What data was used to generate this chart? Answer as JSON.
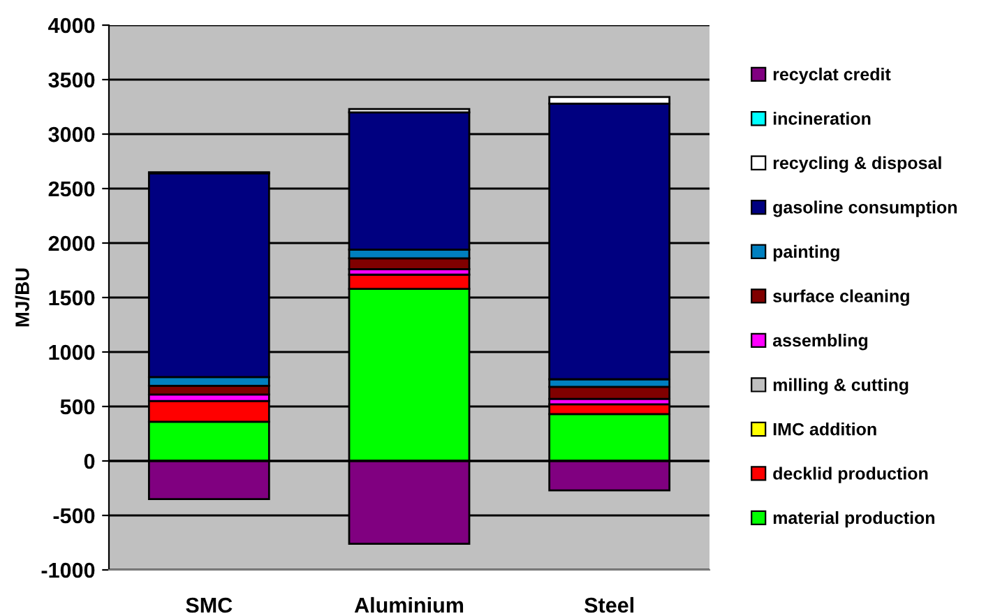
{
  "chart_data": {
    "type": "bar",
    "stacked": true,
    "ylabel": "MJ/BU",
    "categories": [
      "SMC",
      "Aluminium",
      "Steel"
    ],
    "ylim": [
      -1000,
      4000
    ],
    "yticks": [
      -1000,
      -500,
      0,
      500,
      1000,
      1500,
      2000,
      2500,
      3000,
      3500,
      4000
    ],
    "grid": "y",
    "legend": "right",
    "series": [
      {
        "name": "material production",
        "color": "#00ff00",
        "values": [
          360,
          1580,
          430
        ]
      },
      {
        "name": "decklid production",
        "color": "#ff0000",
        "values": [
          190,
          130,
          90
        ]
      },
      {
        "name": "IMC addition",
        "color": "#ffff00",
        "values": [
          0,
          0,
          0
        ]
      },
      {
        "name": "milling & cutting",
        "color": "#c0c0c0",
        "values": [
          0,
          0,
          0
        ]
      },
      {
        "name": "assembling",
        "color": "#ff00ff",
        "values": [
          60,
          50,
          50
        ]
      },
      {
        "name": "surface cleaning",
        "color": "#800000",
        "values": [
          80,
          100,
          110
        ]
      },
      {
        "name": "painting",
        "color": "#0080c0",
        "values": [
          80,
          80,
          70
        ]
      },
      {
        "name": "gasoline consumption",
        "color": "#000080",
        "values": [
          1870,
          1260,
          2530
        ]
      },
      {
        "name": "recycling & disposal",
        "color": "#ffffff",
        "values": [
          10,
          30,
          60
        ]
      },
      {
        "name": "incineration",
        "color": "#00ffff",
        "values": [
          0,
          0,
          0
        ]
      },
      {
        "name": "recyclat credit",
        "color": "#800080",
        "values": [
          -350,
          -760,
          -270
        ]
      }
    ]
  }
}
